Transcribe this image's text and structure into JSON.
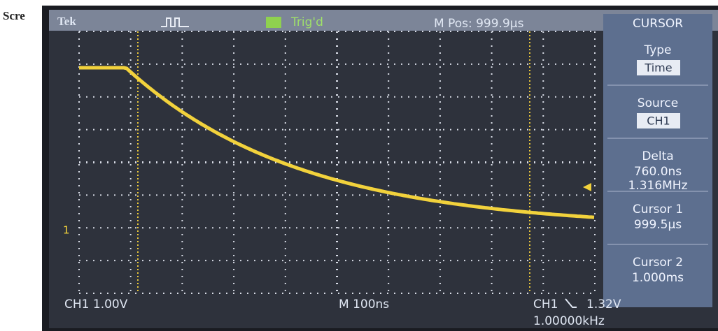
{
  "page_label": "Scre",
  "header": {
    "brand": "Tek",
    "trigger": "Trig'd",
    "position": "M Pos: 999.9µs"
  },
  "screen": {
    "channel_marker": "1"
  },
  "menu": {
    "title": "CURSOR",
    "items": [
      {
        "label": "Type",
        "value": "Time"
      },
      {
        "label": "Source",
        "value": "CH1"
      },
      {
        "label": "Delta",
        "lines": [
          "760.0ns",
          "1.316MHz"
        ]
      },
      {
        "label": "Cursor 1",
        "lines": [
          "999.5µs"
        ]
      },
      {
        "label": "Cursor 2",
        "lines": [
          "1.000ms"
        ]
      }
    ]
  },
  "footer": {
    "scale": "CH1 1.00V",
    "timebase": "M 100ns",
    "trigger_source": "CH1",
    "trigger_level": "1.32V",
    "frequency": "1.00000kHz"
  }
}
